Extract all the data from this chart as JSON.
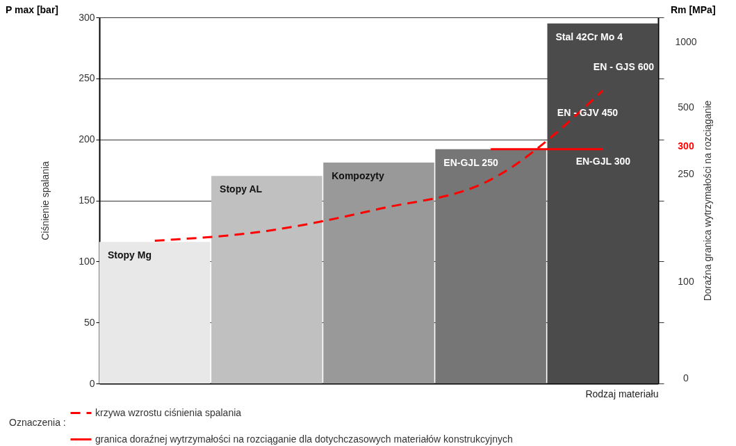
{
  "chart_data": {
    "type": "bar",
    "ylabel": "Ciśnienie spalania",
    "y2label": "Doraźna granica  wytrzymałości na rozciąganie",
    "xlabel": "Rodzaj materiału",
    "legend_title": "Oznaczenia :",
    "categories": [
      "Stopy Mg",
      "Stopy AL",
      "Kompozyty",
      "EN-GJL 250",
      "Stal 42Cr Mo 4"
    ],
    "values": [
      116,
      170,
      181,
      192,
      295
    ],
    "colors": [
      "#e8e8e8",
      "#c0c0c0",
      "#999999",
      "#767676",
      "#4b4b4b"
    ],
    "series": [
      {
        "name": "krzywa wzrostu ciśnienia spalania",
        "type": "line",
        "line_style": "dashed",
        "color": "#ff0000",
        "values": [
          117,
          125,
          143,
          167,
          240
        ]
      },
      {
        "name": "granica doraźnej wytrzymałości na rozciąganie dla dotychczasowych materiałów konstrukcyjnych",
        "type": "line",
        "line_style": "solid",
        "color": "#ff0000",
        "values": [
          null,
          null,
          null,
          192,
          192
        ]
      }
    ],
    "ylim": [
      0,
      300
    ],
    "yticks": [
      0,
      50,
      100,
      150,
      200,
      250,
      300
    ],
    "annotations": [
      "P max  [bar]",
      "Rm  [MPa]",
      "EN - GJS 600",
      "EN - GJV 450",
      "EN-GJL  300",
      "1000",
      "500",
      "300",
      "250",
      "100",
      "0"
    ],
    "grid": "y",
    "legend": "bottom"
  }
}
